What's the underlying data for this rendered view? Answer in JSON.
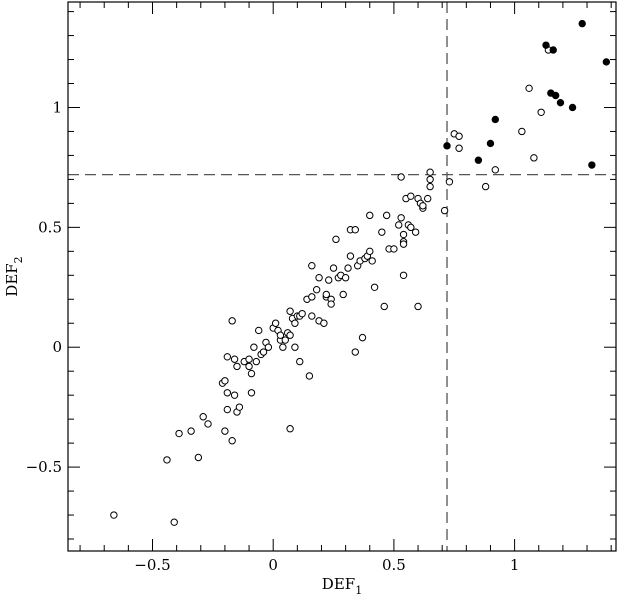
{
  "chart_data": {
    "type": "scatter",
    "title": "",
    "xlabel": "DEF",
    "xlabel_sub": "1",
    "ylabel": "DEF",
    "ylabel_sub": "2",
    "xlim": [
      -0.85,
      1.42
    ],
    "ylim": [
      -0.85,
      1.44
    ],
    "x_ticks": [
      -0.5,
      0,
      0.5,
      1
    ],
    "x_tick_labels": [
      "−0.5",
      "0",
      "0.5",
      "1"
    ],
    "y_ticks": [
      -0.5,
      0,
      0.5,
      1
    ],
    "y_tick_labels": [
      "−0.5",
      "0",
      "0.5",
      "1"
    ],
    "grid": false,
    "reference_lines": {
      "vertical_x": 0.72,
      "horizontal_y": 0.72
    },
    "series": [
      {
        "marker": "open-circle",
        "points": [
          [
            -0.66,
            -0.7
          ],
          [
            -0.41,
            -0.73
          ],
          [
            -0.44,
            -0.47
          ],
          [
            -0.39,
            -0.36
          ],
          [
            -0.34,
            -0.35
          ],
          [
            -0.31,
            -0.46
          ],
          [
            -0.29,
            -0.29
          ],
          [
            -0.27,
            -0.32
          ],
          [
            -0.2,
            -0.35
          ],
          [
            -0.17,
            -0.39
          ],
          [
            -0.19,
            -0.26
          ],
          [
            -0.15,
            -0.27
          ],
          [
            -0.14,
            -0.25
          ],
          [
            -0.16,
            -0.2
          ],
          [
            -0.15,
            -0.08
          ],
          [
            -0.12,
            -0.06
          ],
          [
            -0.1,
            -0.08
          ],
          [
            -0.09,
            -0.11
          ],
          [
            -0.09,
            -0.19
          ],
          [
            -0.21,
            -0.15
          ],
          [
            -0.2,
            -0.14
          ],
          [
            -0.19,
            -0.19
          ],
          [
            -0.19,
            -0.04
          ],
          [
            -0.16,
            -0.05
          ],
          [
            -0.1,
            -0.05
          ],
          [
            -0.07,
            -0.06
          ],
          [
            -0.05,
            -0.03
          ],
          [
            -0.04,
            -0.02
          ],
          [
            -0.17,
            0.11
          ],
          [
            -0.08,
            0.0
          ],
          [
            -0.06,
            0.07
          ],
          [
            -0.03,
            0.02
          ],
          [
            -0.02,
            0.0
          ],
          [
            0.0,
            0.08
          ],
          [
            0.01,
            0.1
          ],
          [
            0.02,
            0.07
          ],
          [
            0.03,
            0.03
          ],
          [
            0.04,
            0.0
          ],
          [
            0.05,
            0.03
          ],
          [
            0.06,
            0.06
          ],
          [
            0.07,
            0.05
          ],
          [
            0.07,
            0.15
          ],
          [
            0.08,
            0.12
          ],
          [
            0.09,
            0.1
          ],
          [
            0.1,
            0.13
          ],
          [
            0.11,
            0.13
          ],
          [
            0.12,
            0.14
          ],
          [
            0.09,
            0.0
          ],
          [
            0.11,
            -0.06
          ],
          [
            0.03,
            0.05
          ],
          [
            0.14,
            0.2
          ],
          [
            0.16,
            0.21
          ],
          [
            0.18,
            0.24
          ],
          [
            0.19,
            0.29
          ],
          [
            0.16,
            0.13
          ],
          [
            0.16,
            0.34
          ],
          [
            0.19,
            0.11
          ],
          [
            0.21,
            0.1
          ],
          [
            0.22,
            0.21
          ],
          [
            0.22,
            0.22
          ],
          [
            0.23,
            0.28
          ],
          [
            0.24,
            0.2
          ],
          [
            0.24,
            0.18
          ],
          [
            0.25,
            0.33
          ],
          [
            0.26,
            0.45
          ],
          [
            0.27,
            0.29
          ],
          [
            0.28,
            0.3
          ],
          [
            0.29,
            0.22
          ],
          [
            0.3,
            0.29
          ],
          [
            0.31,
            0.33
          ],
          [
            0.32,
            0.38
          ],
          [
            0.32,
            0.49
          ],
          [
            0.34,
            0.49
          ],
          [
            0.35,
            0.34
          ],
          [
            0.36,
            0.36
          ],
          [
            0.38,
            0.37
          ],
          [
            0.39,
            0.38
          ],
          [
            0.4,
            0.4
          ],
          [
            0.4,
            0.55
          ],
          [
            0.41,
            0.36
          ],
          [
            0.42,
            0.25
          ],
          [
            0.45,
            0.48
          ],
          [
            0.46,
            0.17
          ],
          [
            0.47,
            0.55
          ],
          [
            0.48,
            0.41
          ],
          [
            0.5,
            0.41
          ],
          [
            0.52,
            0.51
          ],
          [
            0.53,
            0.54
          ],
          [
            0.54,
            0.44
          ],
          [
            0.54,
            0.43
          ],
          [
            0.54,
            0.3
          ],
          [
            0.54,
            0.47
          ],
          [
            0.55,
            0.62
          ],
          [
            0.56,
            0.51
          ],
          [
            0.57,
            0.5
          ],
          [
            0.57,
            0.63
          ],
          [
            0.59,
            0.48
          ],
          [
            0.6,
            0.62
          ],
          [
            0.61,
            0.6
          ],
          [
            0.62,
            0.58
          ],
          [
            0.62,
            0.59
          ],
          [
            0.64,
            0.62
          ],
          [
            0.65,
            0.67
          ],
          [
            0.65,
            0.7
          ],
          [
            0.65,
            0.73
          ],
          [
            0.53,
            0.71
          ],
          [
            0.6,
            0.17
          ],
          [
            0.07,
            -0.34
          ],
          [
            0.15,
            -0.12
          ],
          [
            0.34,
            -0.02
          ],
          [
            0.37,
            0.04
          ],
          [
            0.71,
            0.57
          ],
          [
            0.73,
            0.69
          ],
          [
            0.75,
            0.89
          ],
          [
            0.77,
            0.88
          ],
          [
            0.77,
            0.83
          ],
          [
            0.88,
            0.67
          ],
          [
            0.92,
            0.74
          ],
          [
            1.03,
            0.9
          ],
          [
            1.06,
            1.08
          ],
          [
            1.08,
            0.79
          ],
          [
            1.11,
            0.98
          ],
          [
            1.14,
            1.24
          ]
        ]
      },
      {
        "marker": "filled-circle",
        "points": [
          [
            0.72,
            0.84
          ],
          [
            0.85,
            0.78
          ],
          [
            0.9,
            0.85
          ],
          [
            0.92,
            0.95
          ],
          [
            1.13,
            1.26
          ],
          [
            1.16,
            1.24
          ],
          [
            1.15,
            1.06
          ],
          [
            1.17,
            1.05
          ],
          [
            1.19,
            1.02
          ],
          [
            1.24,
            1.0
          ],
          [
            1.28,
            1.35
          ],
          [
            1.32,
            0.76
          ],
          [
            1.38,
            1.19
          ]
        ]
      }
    ]
  }
}
